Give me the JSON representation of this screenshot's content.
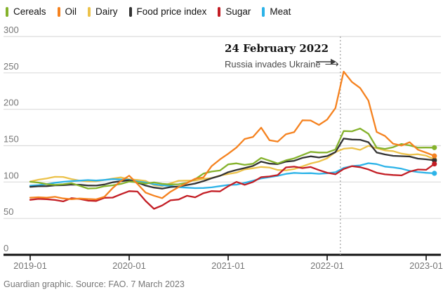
{
  "legend": {
    "items": [
      {
        "label": "Cereals",
        "color": "#85b22c"
      },
      {
        "label": "Oil",
        "color": "#f5821f"
      },
      {
        "label": "Dairy",
        "color": "#ecc24a"
      },
      {
        "label": "Food price index",
        "color": "#333333"
      },
      {
        "label": "Sugar",
        "color": "#c31e25"
      },
      {
        "label": "Meat",
        "color": "#2cb3e8"
      }
    ]
  },
  "annotation": {
    "title": "24 February 2022",
    "subtitle": "Russia invades Ukraine",
    "arrow": "⟶"
  },
  "footer": {
    "text": "Guardian graphic. Source: FAO. 7 March 2023"
  },
  "chart_data": {
    "type": "line",
    "title": "",
    "xlabel": "",
    "ylabel": "",
    "ylim": [
      0,
      300
    ],
    "grid": "horizontal",
    "legend_position": "top",
    "yticks": [
      0,
      50,
      100,
      150,
      200,
      250,
      300
    ],
    "xticks": [
      "2019-01",
      "2020-01",
      "2021-01",
      "2022-01",
      "2023-01"
    ],
    "event_line": {
      "date": "2022-02-24",
      "label": "24 February 2022 — Russia invades Ukraine",
      "month_index": 37.6,
      "color": "#9c9c9c"
    },
    "x": [
      "2019-01",
      "2019-02",
      "2019-03",
      "2019-04",
      "2019-05",
      "2019-06",
      "2019-07",
      "2019-08",
      "2019-09",
      "2019-10",
      "2019-11",
      "2019-12",
      "2020-01",
      "2020-02",
      "2020-03",
      "2020-04",
      "2020-05",
      "2020-06",
      "2020-07",
      "2020-08",
      "2020-09",
      "2020-10",
      "2020-11",
      "2020-12",
      "2021-01",
      "2021-02",
      "2021-03",
      "2021-04",
      "2021-05",
      "2021-06",
      "2021-07",
      "2021-08",
      "2021-09",
      "2021-10",
      "2021-11",
      "2021-12",
      "2022-01",
      "2022-02",
      "2022-03",
      "2022-04",
      "2022-05",
      "2022-06",
      "2022-07",
      "2022-08",
      "2022-09",
      "2022-10",
      "2022-11",
      "2022-12",
      "2023-01",
      "2023-02"
    ],
    "series": [
      {
        "name": "Cereals",
        "color": "#85b22c",
        "values": [
          100.3,
          99.3,
          97.0,
          96.2,
          96.9,
          98.4,
          94.8,
          91.1,
          91.5,
          94.2,
          95.5,
          97.4,
          100.6,
          99.6,
          97.8,
          99.5,
          97.5,
          96.7,
          96.9,
          98.9,
          103.9,
          111.6,
          114.4,
          115.9,
          124.2,
          125.7,
          123.6,
          125.1,
          133.1,
          129.4,
          125.5,
          129.8,
          132.5,
          137.1,
          141.5,
          140.5,
          140.6,
          144.8,
          170.1,
          169.7,
          173.5,
          166.3,
          147.3,
          145.6,
          147.9,
          152.3,
          150.4,
          147.3,
          147.4,
          147.3
        ]
      },
      {
        "name": "Oil",
        "color": "#f5821f",
        "values": [
          78.5,
          79.1,
          78.4,
          79.7,
          77.5,
          76.4,
          77.4,
          76.7,
          76.2,
          79.8,
          91.7,
          101.4,
          108.7,
          97.4,
          85.5,
          81.2,
          77.8,
          86.6,
          93.2,
          98.7,
          104.6,
          106.4,
          121.9,
          131.1,
          138.8,
          147.4,
          159.2,
          162.0,
          174.7,
          157.5,
          155.5,
          165.7,
          168.6,
          184.8,
          184.6,
          178.5,
          185.9,
          201.7,
          251.8,
          237.5,
          229.2,
          211.8,
          168.8,
          163.3,
          152.6,
          150.1,
          154.7,
          144.4,
          140.4,
          135.9
        ]
      },
      {
        "name": "Dairy",
        "color": "#ecc24a",
        "values": [
          100.7,
          103.2,
          105.0,
          107.2,
          107.0,
          104.1,
          101.9,
          100.9,
          101.0,
          102.8,
          104.8,
          106.4,
          103.8,
          102.9,
          101.5,
          95.8,
          94.4,
          98.2,
          101.8,
          102.0,
          102.2,
          104.4,
          105.4,
          108.9,
          111.0,
          113.0,
          117.4,
          118.9,
          120.8,
          119.9,
          116.5,
          116.0,
          117.9,
          121.5,
          125.5,
          128.2,
          132.6,
          141.1,
          145.8,
          146.7,
          144.2,
          149.8,
          146.4,
          143.4,
          142.5,
          139.1,
          137.5,
          138.2,
          136.2,
          131.3
        ]
      },
      {
        "name": "Food price index",
        "color": "#333333",
        "values": [
          93.4,
          94.1,
          94.3,
          95.4,
          95.6,
          96.5,
          96.4,
          95.2,
          95.1,
          96.7,
          99.6,
          101.1,
          102.5,
          99.4,
          95.1,
          92.4,
          91.0,
          93.1,
          94.0,
          95.9,
          97.9,
          101.3,
          105.2,
          108.5,
          113.5,
          116.6,
          119.2,
          122.1,
          128.1,
          125.3,
          124.6,
          128.0,
          129.2,
          133.2,
          135.3,
          133.7,
          135.6,
          141.1,
          159.7,
          158.4,
          158.1,
          154.7,
          140.6,
          137.9,
          136.0,
          135.5,
          135.0,
          132.2,
          131.2,
          129.8
        ]
      },
      {
        "name": "Sugar",
        "color": "#c31e25",
        "values": [
          75.5,
          76.9,
          76.4,
          75.3,
          73.4,
          77.8,
          76.7,
          74.5,
          74.0,
          78.3,
          78.6,
          83.2,
          87.5,
          86.9,
          73.9,
          63.2,
          67.8,
          74.9,
          76.0,
          81.1,
          79.0,
          84.7,
          87.5,
          87.1,
          94.2,
          100.2,
          96.2,
          100.0,
          106.7,
          107.7,
          109.6,
          120.1,
          121.2,
          119.1,
          120.7,
          116.4,
          112.8,
          110.6,
          117.9,
          121.8,
          120.4,
          117.3,
          112.8,
          110.5,
          109.7,
          109.1,
          114.3,
          117.2,
          116.8,
          124.9
        ]
      },
      {
        "name": "Meat",
        "color": "#2cb3e8",
        "values": [
          95.0,
          95.8,
          97.0,
          99.0,
          100.3,
          101.3,
          102.0,
          102.7,
          102.1,
          102.9,
          104.0,
          103.5,
          102.9,
          100.8,
          99.4,
          96.9,
          95.4,
          94.8,
          92.9,
          92.3,
          91.6,
          91.8,
          92.7,
          94.3,
          96.0,
          96.4,
          98.9,
          101.8,
          105.0,
          106.7,
          108.5,
          111.2,
          112.6,
          112.0,
          112.2,
          111.3,
          112.1,
          113.4,
          119.3,
          121.9,
          122.9,
          125.9,
          124.6,
          121.3,
          120.1,
          118.4,
          115.4,
          113.7,
          112.7,
          112.0
        ]
      }
    ],
    "styles": {
      "grid_color": "#dcdcdc",
      "axis_color": "#121212",
      "tick_label_color": "#767676"
    }
  }
}
